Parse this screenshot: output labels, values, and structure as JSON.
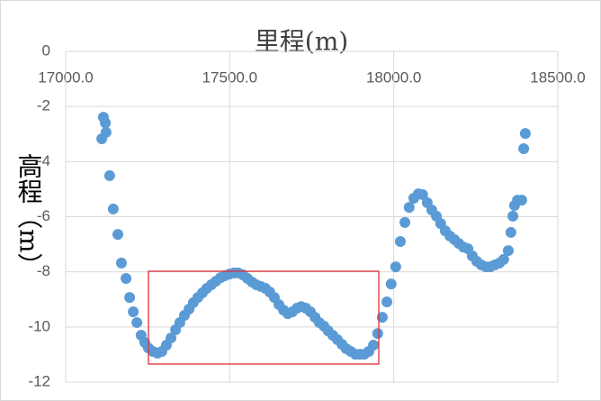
{
  "chart_data": {
    "type": "scatter",
    "title": "里程(m)",
    "y_label": "高程（m）",
    "color": "#5b9bd5",
    "grid": true,
    "xlim": [
      17000,
      18500
    ],
    "ylim": [
      -12,
      0
    ],
    "xticks": [
      {
        "value": 17000,
        "label": "17000.0"
      },
      {
        "value": 17500,
        "label": "17500.0"
      },
      {
        "value": 18000,
        "label": "18000.0"
      },
      {
        "value": 18500,
        "label": "18500.0"
      }
    ],
    "yticks": [
      0,
      -2,
      -4,
      -6,
      -8,
      -10,
      -12
    ],
    "x": [
      17110,
      17115,
      17121,
      17123,
      17134,
      17145,
      17159,
      17170,
      17184,
      17195,
      17206,
      17217,
      17230,
      17241,
      17252,
      17266,
      17280,
      17293,
      17307,
      17321,
      17335,
      17348,
      17362,
      17376,
      17389,
      17403,
      17417,
      17430,
      17444,
      17458,
      17472,
      17485,
      17499,
      17513,
      17526,
      17540,
      17554,
      17568,
      17581,
      17595,
      17609,
      17622,
      17636,
      17650,
      17664,
      17677,
      17691,
      17705,
      17718,
      17732,
      17746,
      17760,
      17773,
      17787,
      17800,
      17814,
      17828,
      17842,
      17855,
      17869,
      17883,
      17897,
      17910,
      17924,
      17938,
      17951,
      17965,
      17979,
      17992,
      18006,
      18020,
      18034,
      18047,
      18061,
      18075,
      18088,
      18102,
      18116,
      18130,
      18143,
      18157,
      18171,
      18185,
      18198,
      18212,
      18226,
      18239,
      18253,
      18267,
      18281,
      18294,
      18308,
      18322,
      18335,
      18349,
      18357,
      18363,
      18368,
      18377,
      18390,
      18396,
      18401
    ],
    "values": [
      -3.17,
      -2.39,
      -2.6,
      -2.94,
      -4.51,
      -5.72,
      -6.64,
      -7.68,
      -8.24,
      -8.93,
      -9.45,
      -9.84,
      -10.3,
      -10.56,
      -10.76,
      -10.89,
      -10.95,
      -10.89,
      -10.66,
      -10.4,
      -10.1,
      -9.84,
      -9.58,
      -9.35,
      -9.12,
      -8.93,
      -8.76,
      -8.6,
      -8.47,
      -8.34,
      -8.21,
      -8.14,
      -8.08,
      -8.04,
      -8.04,
      -8.11,
      -8.24,
      -8.37,
      -8.47,
      -8.53,
      -8.6,
      -8.73,
      -8.93,
      -9.19,
      -9.39,
      -9.52,
      -9.45,
      -9.32,
      -9.26,
      -9.32,
      -9.45,
      -9.65,
      -9.84,
      -9.97,
      -10.14,
      -10.3,
      -10.46,
      -10.63,
      -10.79,
      -10.89,
      -10.99,
      -10.99,
      -10.99,
      -10.89,
      -10.66,
      -10.24,
      -9.65,
      -9.09,
      -8.44,
      -7.82,
      -6.9,
      -6.21,
      -5.66,
      -5.33,
      -5.17,
      -5.2,
      -5.49,
      -5.76,
      -5.98,
      -6.25,
      -6.51,
      -6.7,
      -6.83,
      -6.97,
      -7.1,
      -7.16,
      -7.42,
      -7.62,
      -7.75,
      -7.82,
      -7.82,
      -7.75,
      -7.68,
      -7.55,
      -7.23,
      -6.57,
      -5.98,
      -5.59,
      -5.4,
      -5.4,
      -3.53,
      -2.98
    ]
  }
}
